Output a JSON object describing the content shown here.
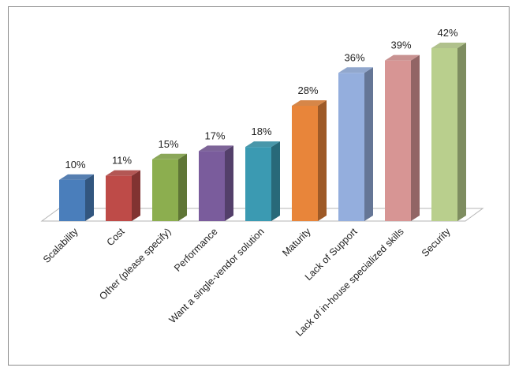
{
  "chart_data": {
    "type": "bar",
    "categories": [
      "Scalability",
      "Cost",
      "Other (please specify)",
      "Performance",
      "Want a single-vendor solution",
      "Maturity",
      "Lack of Support",
      "Lack of in-house specialized skills",
      "Security"
    ],
    "values": [
      10,
      11,
      15,
      17,
      18,
      28,
      36,
      39,
      42
    ],
    "value_labels": [
      "10%",
      "11%",
      "15%",
      "17%",
      "18%",
      "28%",
      "36%",
      "39%",
      "42%"
    ],
    "colors": [
      "#4a7ebb",
      "#be4b48",
      "#8cae4f",
      "#7a5c9c",
      "#3b9ab2",
      "#e8853a",
      "#94aedd",
      "#d79594",
      "#b9cf8d"
    ],
    "ylim": [
      0,
      42
    ],
    "grid": false,
    "legend": "none"
  }
}
